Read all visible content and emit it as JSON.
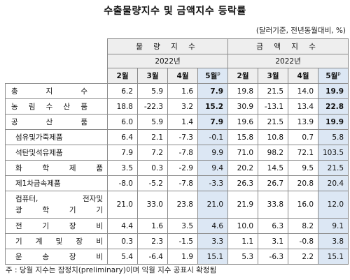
{
  "title": "수출물량지수 및 금액지수 등락률",
  "unit": "(달러기준, 전년동월대비, %)",
  "headers": {
    "volume_group": "물 량 지 수",
    "value_group": "금 액 지 수",
    "year": "2022년",
    "months": [
      "2월",
      "3월",
      "4월",
      "5월"
    ],
    "prelim_mark": "p"
  },
  "rows": [
    {
      "label": "총 지 수",
      "main": true,
      "vol": [
        "6.2",
        "5.9",
        "1.6",
        "7.9"
      ],
      "val": [
        "19.8",
        "21.5",
        "14.0",
        "19.9"
      ]
    },
    {
      "label": "농 림 수 산 품",
      "main": true,
      "vol": [
        "18.8",
        "-22.3",
        "3.2",
        "15.2"
      ],
      "val": [
        "30.9",
        "-13.1",
        "13.4",
        "22.8"
      ]
    },
    {
      "label": "공 산 품",
      "main": true,
      "vol": [
        "6.0",
        "5.9",
        "1.4",
        "7.9"
      ],
      "val": [
        "19.6",
        "21.5",
        "13.9",
        "19.9"
      ]
    },
    {
      "label": "섬유및가죽제품",
      "main": false,
      "vol": [
        "6.4",
        "2.1",
        "-7.3",
        "-0.1"
      ],
      "val": [
        "15.8",
        "10.8",
        "0.7",
        "5.8"
      ]
    },
    {
      "label": "석탄및석유제품",
      "main": false,
      "vol": [
        "7.9",
        "7.2",
        "-7.8",
        "9.9"
      ],
      "val": [
        "71.0",
        "98.2",
        "72.1",
        "103.5"
      ]
    },
    {
      "label": "화 학 제 품",
      "main": false,
      "vol": [
        "3.5",
        "0.3",
        "-2.9",
        "9.4"
      ],
      "val": [
        "20.2",
        "14.5",
        "9.5",
        "21.5"
      ]
    },
    {
      "label": "제1차금속제품",
      "main": false,
      "vol": [
        "-8.0",
        "-5.2",
        "-7.8",
        "-3.3"
      ],
      "val": [
        "26.3",
        "26.7",
        "20.8",
        "20.4"
      ]
    },
    {
      "label": "컴퓨터, 전자및",
      "label2": "광 학 기 기",
      "main": false,
      "vol": [
        "21.0",
        "33.0",
        "23.8",
        "21.0"
      ],
      "val": [
        "21.9",
        "33.8",
        "16.0",
        "12.0"
      ]
    },
    {
      "label": "전 기 장 비",
      "main": false,
      "vol": [
        "4.4",
        "1.6",
        "3.5",
        "4.6"
      ],
      "val": [
        "10.0",
        "6.3",
        "8.2",
        "9.1"
      ]
    },
    {
      "label": "기 계 및 장 비",
      "main": false,
      "vol": [
        "0.3",
        "2.3",
        "-1.5",
        "3.3"
      ],
      "val": [
        "1.1",
        "3.1",
        "-0.8",
        "3.8"
      ]
    },
    {
      "label": "운 송 장 비",
      "main": false,
      "vol": [
        "5.4",
        "-6.4",
        "1.9",
        "15.1"
      ],
      "val": [
        "5.3",
        "-6.3",
        "2.2",
        "15.1"
      ]
    }
  ],
  "note": "주 : 당월 지수는 잠정치(preliminary)이며 익월 지수 공표시 확정됨"
}
